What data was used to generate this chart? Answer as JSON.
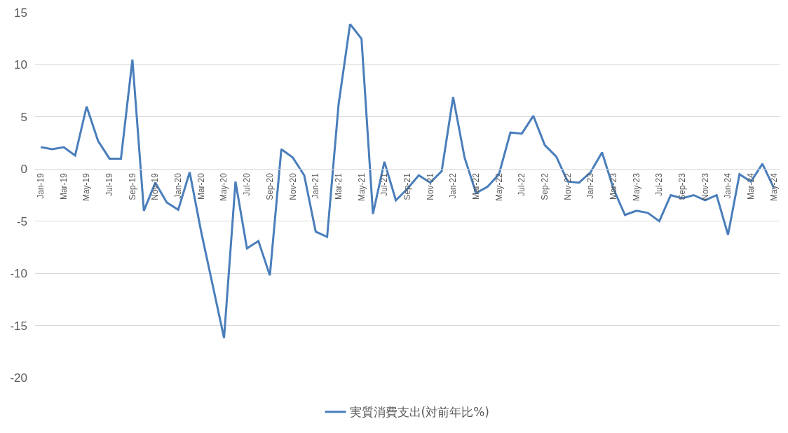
{
  "chart_data": {
    "type": "line",
    "categories": [
      "Jan-19",
      null,
      "Mar-19",
      null,
      "May-19",
      null,
      "Jul-19",
      null,
      "Sep-19",
      null,
      "Nov-19",
      null,
      "Jan-20",
      null,
      "Mar-20",
      null,
      "May-20",
      null,
      "Jul-20",
      null,
      "Sep-20",
      null,
      "Nov-20",
      null,
      "Jan-21",
      null,
      "Mar-21",
      null,
      "May-21",
      null,
      "Jul-21",
      null,
      "Sep-21",
      null,
      "Nov-21",
      null,
      "Jan-22",
      null,
      "Mar-22",
      null,
      "May-22",
      null,
      "Jul-22",
      null,
      "Sep-22",
      null,
      "Nov-22",
      null,
      "Jan-23",
      null,
      "Mar-23",
      null,
      "May-23",
      null,
      "Jul-23",
      null,
      "Sep-23",
      null,
      "Nov-23",
      null,
      "Jan-24",
      null,
      "Mar-24",
      null,
      "May-24"
    ],
    "series": [
      {
        "name": "実質消費支出(対前年比%)",
        "color": "#4a7ebb",
        "values": [
          2.1,
          1.9,
          2.1,
          1.3,
          6.0,
          2.7,
          1.0,
          1.0,
          10.5,
          -4.0,
          -1.3,
          -3.2,
          -3.9,
          -0.3,
          -6.0,
          -11.1,
          -16.2,
          -1.2,
          -7.6,
          -6.9,
          -10.2,
          1.9,
          1.1,
          -0.6,
          -6.0,
          -6.5,
          6.2,
          13.9,
          12.5,
          -4.3,
          0.7,
          -3.0,
          -1.9,
          -0.6,
          -1.3,
          -0.2,
          6.9,
          1.1,
          -2.3,
          -1.7,
          -0.5,
          3.5,
          3.4,
          5.1,
          2.3,
          1.2,
          -1.2,
          -1.3,
          -0.3,
          1.6,
          -1.9,
          -4.4,
          -4.0,
          -4.2,
          -5.0,
          -2.5,
          -2.8,
          -2.5,
          -3.0,
          -2.5,
          -6.3,
          -0.5,
          -1.2,
          0.5,
          -1.8
        ]
      }
    ],
    "ylim": [
      -20,
      15
    ],
    "yticks": [
      -20,
      -15,
      -10,
      -5,
      0,
      5,
      10,
      15
    ],
    "grid": "y",
    "legend": "bottom",
    "marker": "none",
    "line_style": "solid"
  }
}
